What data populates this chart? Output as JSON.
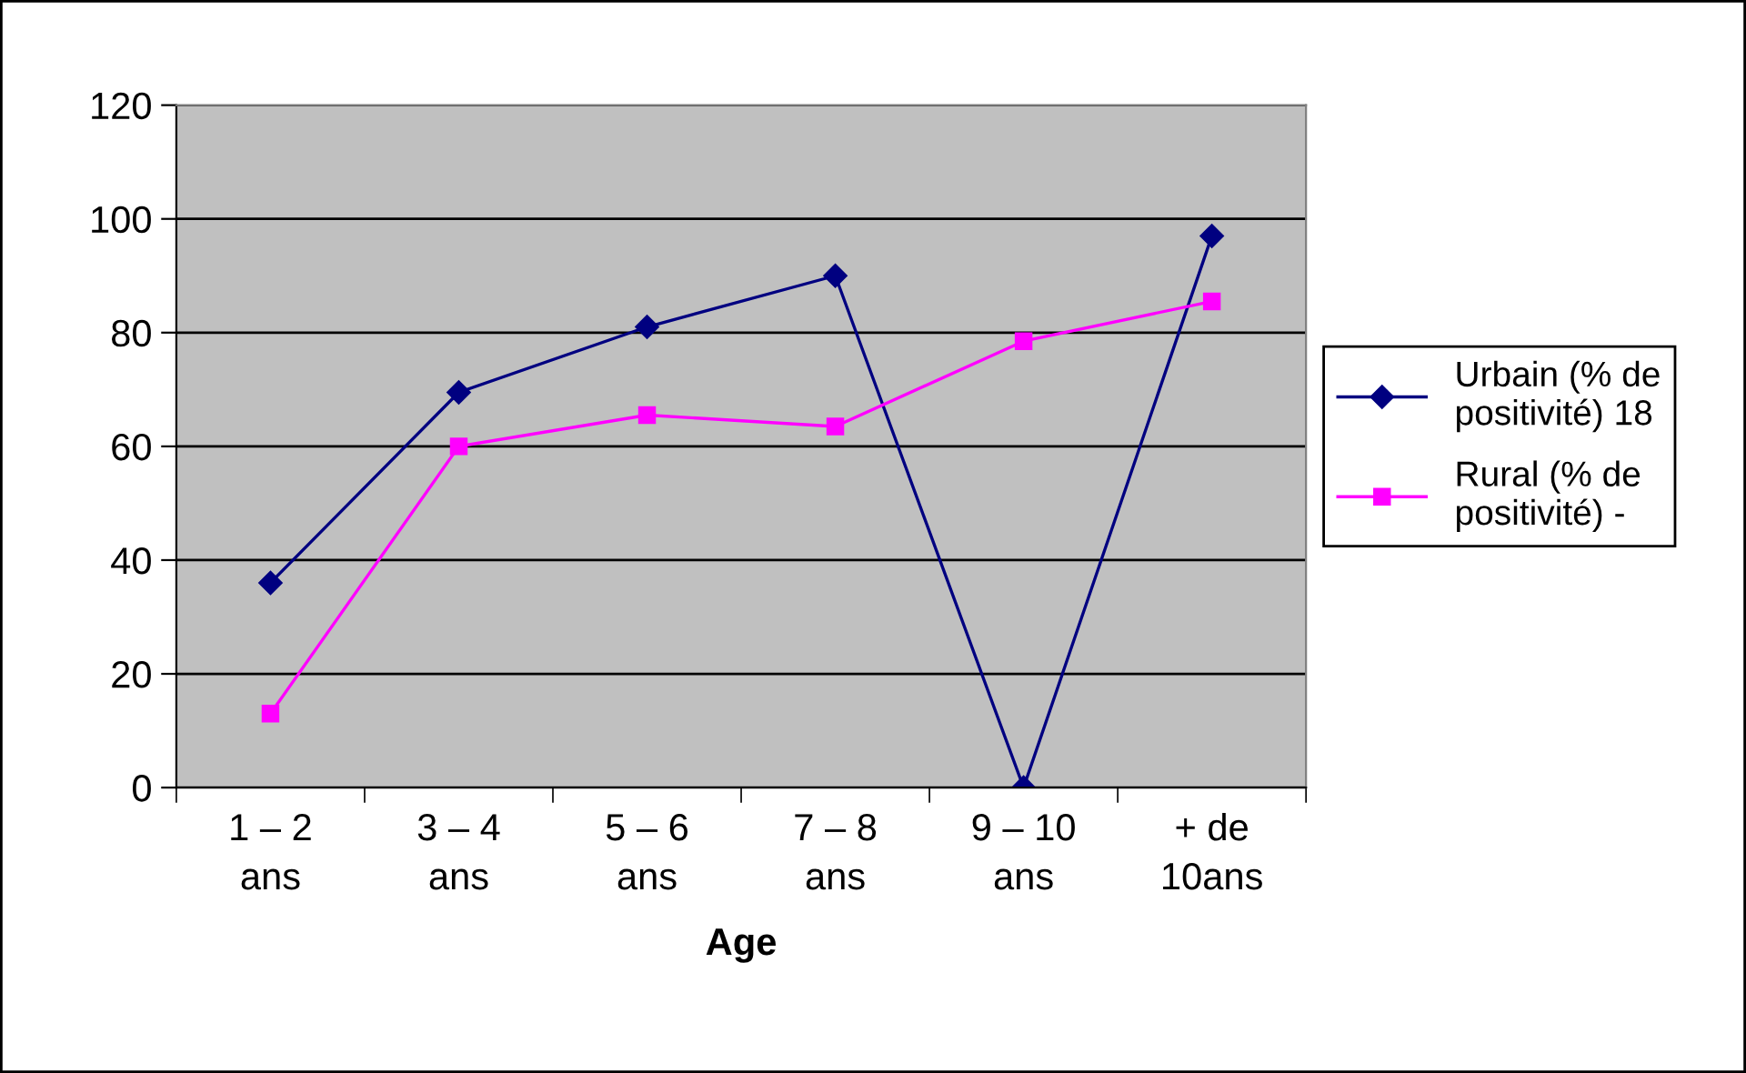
{
  "chart_data": {
    "type": "line",
    "xlabel": "Age",
    "categories": [
      "1 – 2\nans",
      "3 – 4\nans",
      "5 – 6\nans",
      "7 – 8\nans",
      "9 – 10\nans",
      "+ de\n10ans"
    ],
    "series": [
      {
        "name": "Urbain (% de positivité) 18",
        "color": "#000080",
        "marker": "diamond",
        "values": [
          36,
          69.5,
          81,
          90,
          0,
          97
        ]
      },
      {
        "name": "Rural (% de positivité) -",
        "color": "#ff00ff",
        "marker": "square",
        "values": [
          13,
          60,
          65.5,
          63.5,
          78.5,
          85.5
        ]
      }
    ],
    "ylim": [
      0,
      120
    ],
    "yticks": [
      0,
      20,
      40,
      60,
      80,
      100,
      120
    ],
    "grid": "y",
    "legend": "right",
    "line_style": "solid"
  }
}
